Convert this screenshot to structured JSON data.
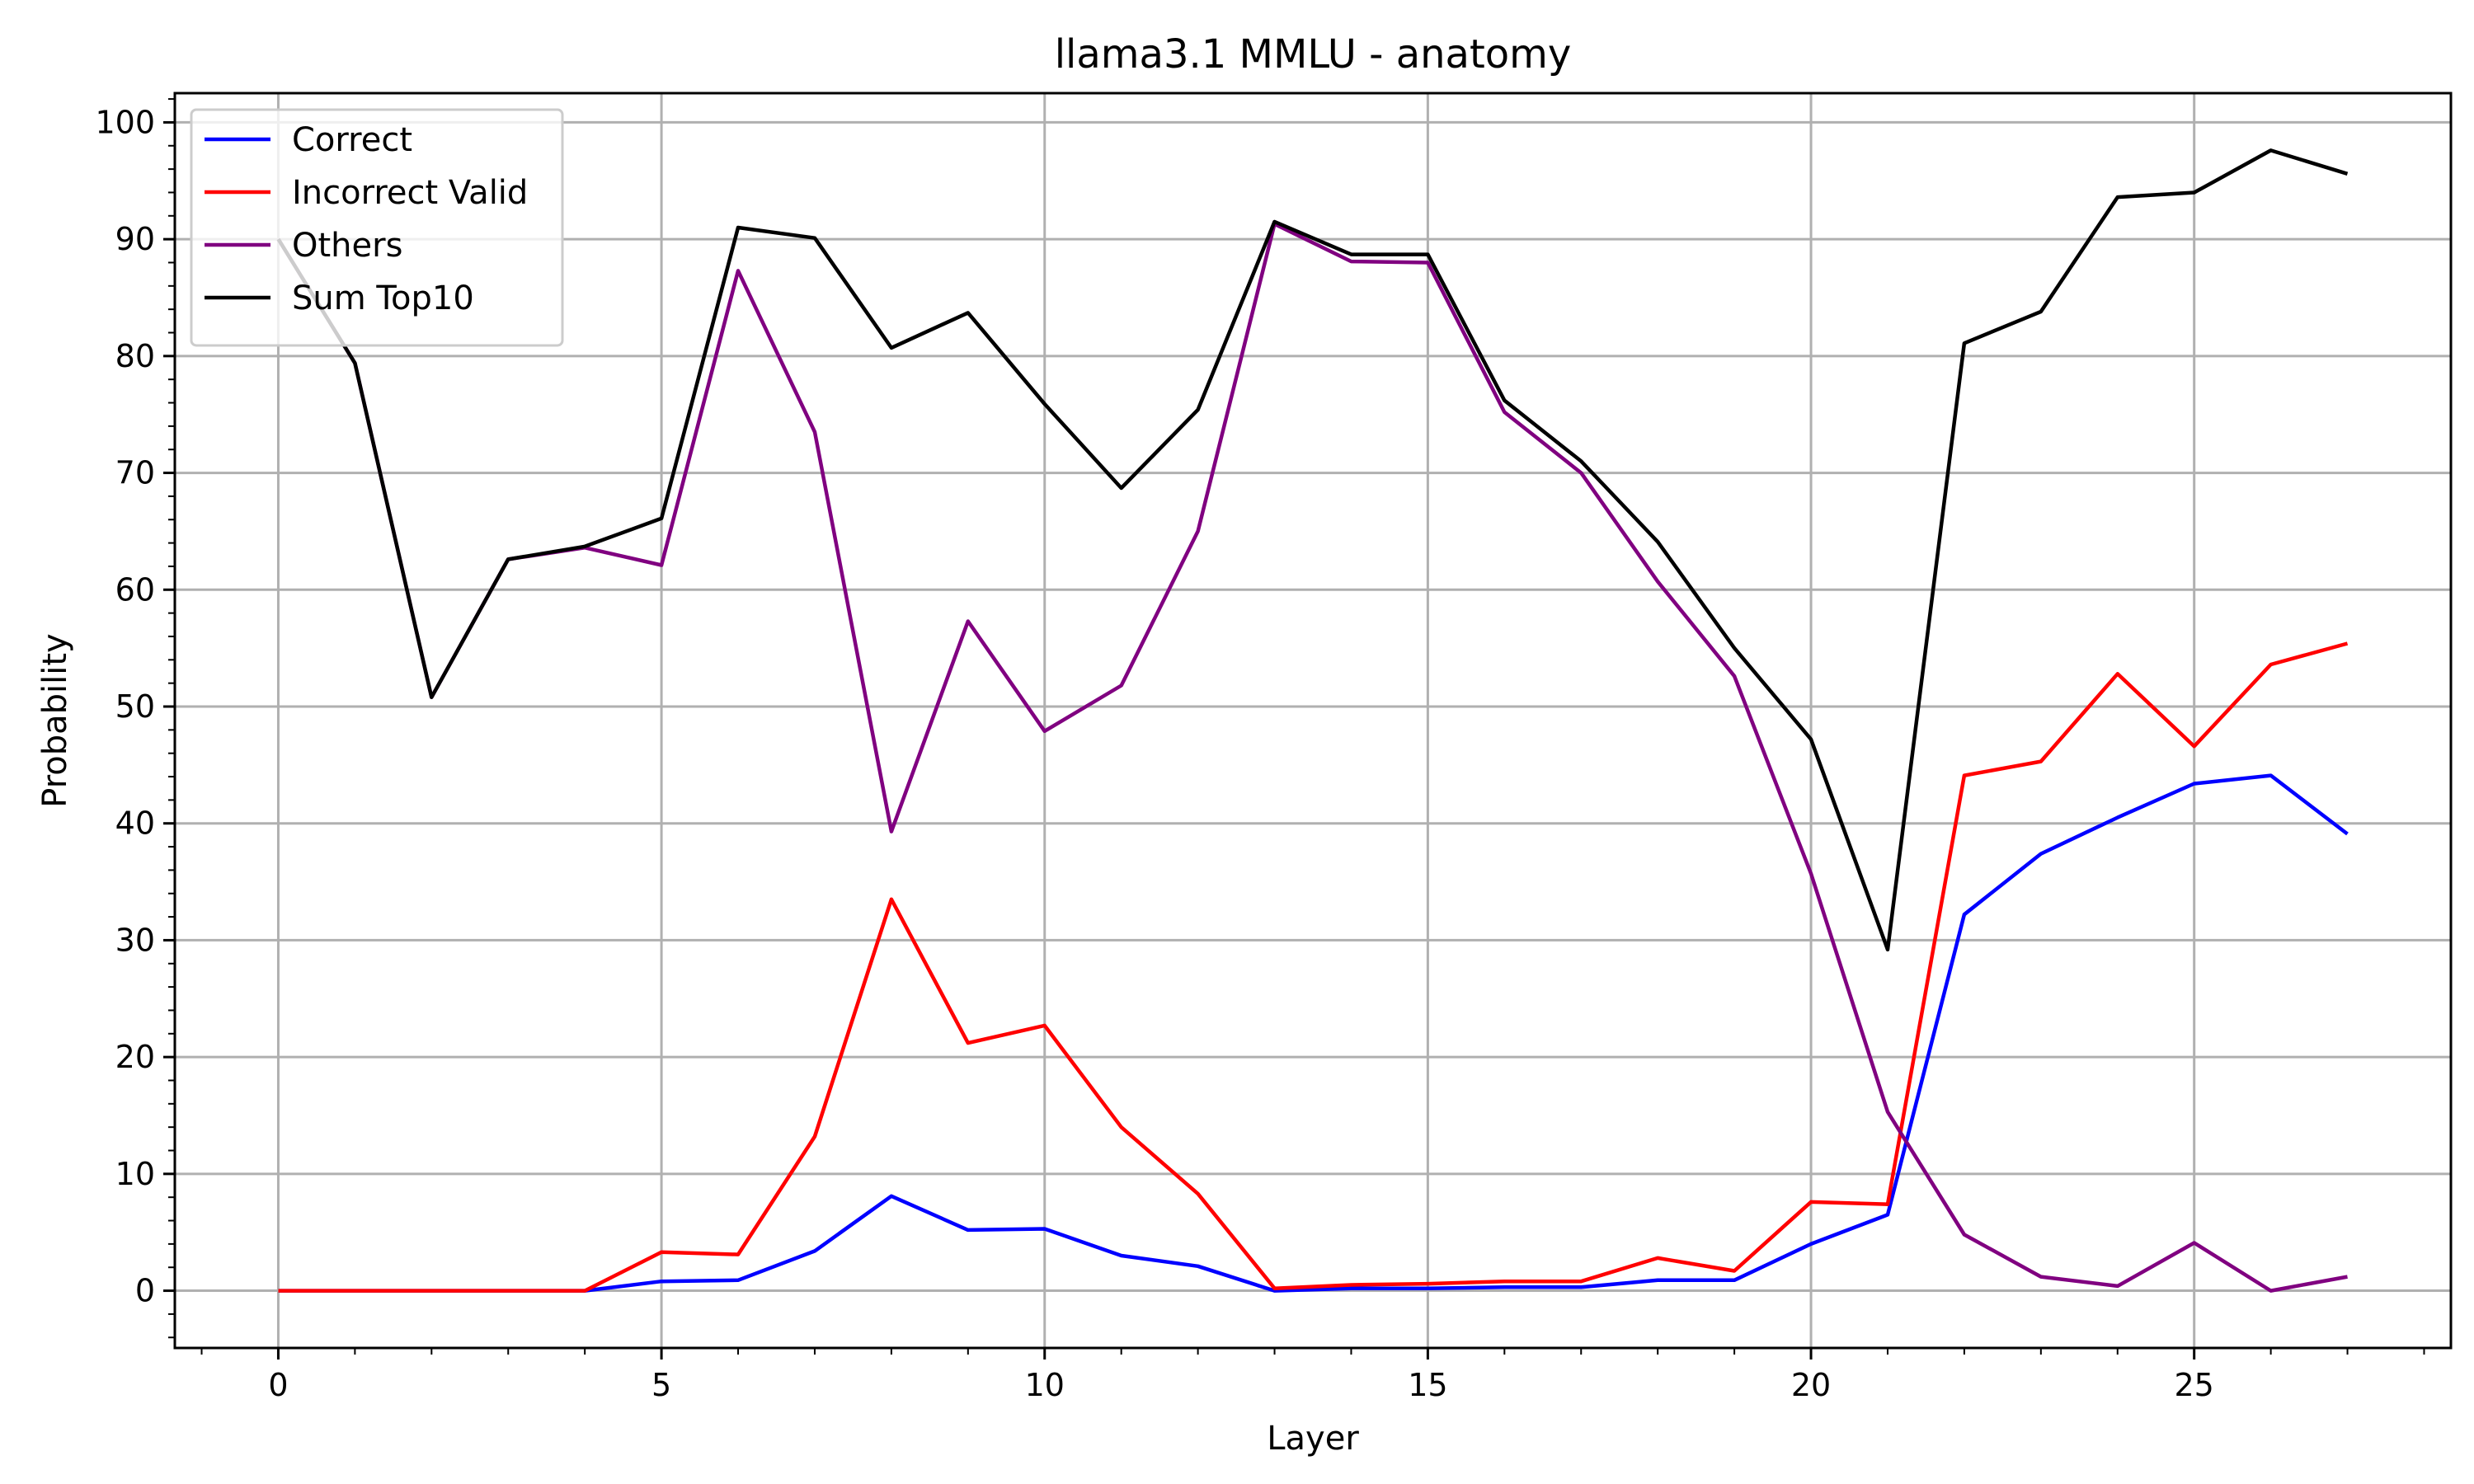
{
  "chart_data": {
    "type": "line",
    "title": "llama3.1 MMLU - anatomy",
    "xlabel": "Layer",
    "ylabel": "Probability",
    "xlim": [
      -1.35,
      28.35
    ],
    "ylim": [
      -4.9,
      102.5
    ],
    "x_ticks": [
      0,
      5,
      10,
      15,
      20,
      25
    ],
    "y_ticks": [
      0,
      10,
      20,
      30,
      40,
      50,
      60,
      70,
      80,
      90,
      100
    ],
    "grid": true,
    "legend_position": "top-left",
    "x": [
      0,
      1,
      2,
      3,
      4,
      5,
      6,
      7,
      8,
      9,
      10,
      11,
      12,
      13,
      14,
      15,
      16,
      17,
      18,
      19,
      20,
      21,
      22,
      23,
      24,
      25,
      26,
      27
    ],
    "series": [
      {
        "name": "Correct",
        "color": "#0000ff",
        "values": [
          0,
          0,
          0,
          0,
          0,
          0.8,
          0.9,
          3.4,
          8.1,
          5.2,
          5.3,
          3.0,
          2.1,
          0.0,
          0.2,
          0.2,
          0.3,
          0.3,
          0.9,
          0.9,
          4.0,
          6.5,
          32.2,
          37.4,
          40.5,
          43.4,
          44.1,
          39.1
        ]
      },
      {
        "name": "Incorrect Valid",
        "color": "#ff0000",
        "values": [
          0,
          0,
          0,
          0,
          0,
          3.3,
          3.1,
          13.2,
          33.5,
          21.2,
          22.7,
          14.0,
          8.3,
          0.2,
          0.5,
          0.6,
          0.8,
          0.8,
          2.8,
          1.7,
          7.6,
          7.4,
          44.1,
          45.3,
          52.8,
          46.6,
          53.6,
          55.4
        ]
      },
      {
        "name": "Others",
        "color": "#800080",
        "values": [
          90.0,
          79.4,
          50.8,
          62.6,
          63.6,
          62.1,
          87.3,
          73.5,
          39.3,
          57.3,
          47.9,
          51.8,
          65.0,
          91.3,
          88.1,
          88.0,
          75.2,
          70.0,
          60.7,
          52.6,
          35.7,
          15.3,
          4.8,
          1.2,
          0.4,
          4.1,
          0.0,
          1.2
        ]
      },
      {
        "name": "Sum Top10",
        "color": "#000000",
        "values": [
          90.0,
          79.4,
          50.8,
          62.6,
          63.7,
          66.1,
          91.0,
          90.1,
          80.7,
          83.7,
          75.9,
          68.7,
          75.4,
          91.5,
          88.7,
          88.7,
          76.2,
          71.0,
          64.1,
          55.0,
          47.2,
          29.2,
          81.1,
          83.8,
          93.6,
          94.0,
          97.6,
          95.6
        ]
      }
    ]
  }
}
